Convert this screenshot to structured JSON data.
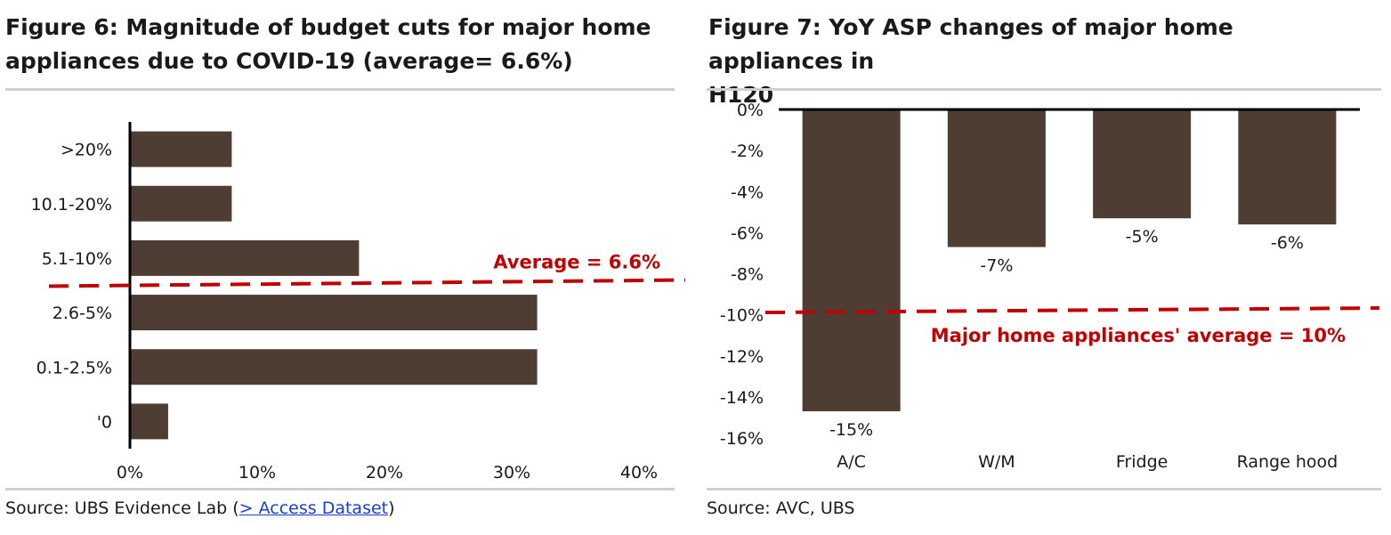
{
  "chart_data": [
    {
      "type": "bar",
      "orientation": "horizontal",
      "title": "Figure 6: Magnitude of budget cuts for major home appliances due to COVID-19 (average= 6.6%)",
      "title_line1": "Figure 6: Magnitude of budget cuts for major home",
      "title_line2": "appliances due to COVID-19 (average= 6.6%)",
      "categories": [
        ">20%",
        "10.1-20%",
        "5.1-10%",
        "2.6-5%",
        "0.1-2.5%",
        "'0"
      ],
      "values": [
        8,
        8,
        18,
        32,
        32,
        3
      ],
      "xlim": [
        0,
        40
      ],
      "x_ticks": [
        "0%",
        "10%",
        "20%",
        "30%",
        "40%"
      ],
      "x_tick_values": [
        0,
        10,
        20,
        30,
        40
      ],
      "reference_line": {
        "label": "Average = 6.6%",
        "position_between": [
          "5.1-10%",
          "2.6-5%"
        ]
      },
      "bar_color": "#4e3d33",
      "reference_color": "#c00000",
      "grid": false,
      "source_prefix": "Source:  UBS Evidence Lab (",
      "source_link": "> Access Dataset",
      "source_suffix": ")"
    },
    {
      "type": "bar",
      "orientation": "vertical",
      "title": "Figure 7: YoY ASP changes of major home appliances in H120",
      "title_line1": "Figure 7: YoY ASP changes of major home appliances in",
      "title_line2": "H120",
      "categories": [
        "A/C",
        "W/M",
        "Fridge",
        "Range hood"
      ],
      "values": [
        -14.7,
        -6.7,
        -5.3,
        -5.6
      ],
      "data_labels": [
        "-15%",
        "-7%",
        "-5%",
        "-6%"
      ],
      "ylim": [
        -16,
        0
      ],
      "y_ticks": [
        "0%",
        "-2%",
        "-4%",
        "-6%",
        "-8%",
        "-10%",
        "-12%",
        "-14%",
        "-16%"
      ],
      "y_tick_values": [
        0,
        -2,
        -4,
        -6,
        -8,
        -10,
        -12,
        -14,
        -16
      ],
      "reference_line": {
        "label": "Major home appliances' average = 10%",
        "value": -9.8
      },
      "bar_color": "#4e3d33",
      "reference_color": "#c00000",
      "grid": false,
      "source": "Source:  AVC, UBS"
    }
  ]
}
